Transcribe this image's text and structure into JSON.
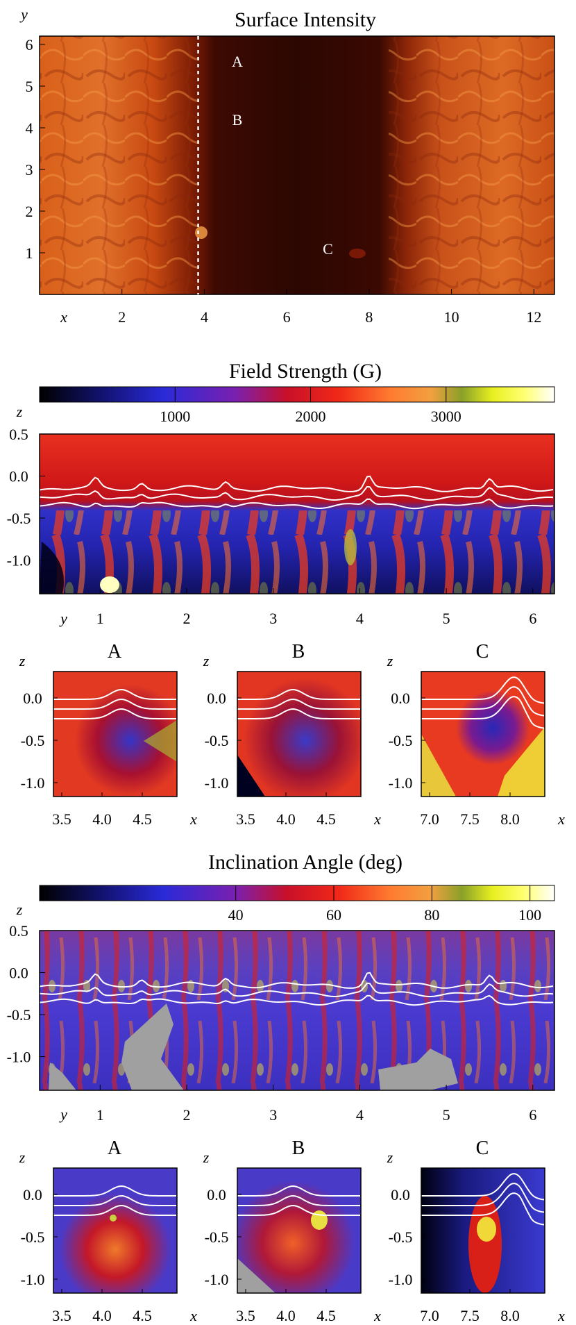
{
  "figure": {
    "panels": [
      {
        "id": "surface",
        "title": "Surface Intensity",
        "ylabel": "y",
        "xlabel": "x",
        "x_ticks": [
          "2",
          "4",
          "6",
          "8",
          "10",
          "12"
        ],
        "y_ticks": [
          "1",
          "2",
          "3",
          "4",
          "5",
          "6"
        ],
        "markers": [
          {
            "label": "A",
            "x": 4.8,
            "y": 5.6
          },
          {
            "label": "B",
            "x": 4.8,
            "y": 4.2
          },
          {
            "label": "C",
            "x": 7.0,
            "y": 1.1
          }
        ],
        "dashed_line_x": 3.85
      },
      {
        "id": "field",
        "title": "Field Strength (G)",
        "colorbar_ticks": [
          "1000",
          "2000",
          "3000"
        ],
        "zlabel": "z",
        "xlabel": "y",
        "x_ticks": [
          "1",
          "2",
          "3",
          "4",
          "5",
          "6"
        ],
        "z_ticks": [
          "0.5",
          "0.0",
          "-0.5",
          "-1.0"
        ],
        "insets": [
          {
            "label": "A",
            "x_ticks": [
              "3.5",
              "4.0",
              "4.5"
            ],
            "z_ticks": [
              "0.0",
              "-0.5",
              "-1.0"
            ],
            "xlabel": "x",
            "zlabel": "z"
          },
          {
            "label": "B",
            "x_ticks": [
              "3.5",
              "4.0",
              "4.5"
            ],
            "z_ticks": [
              "0.0",
              "-0.5",
              "-1.0"
            ],
            "xlabel": "x",
            "zlabel": "z"
          },
          {
            "label": "C",
            "x_ticks": [
              "7.0",
              "7.5",
              "8.0"
            ],
            "z_ticks": [
              "0.0",
              "-0.5",
              "-1.0"
            ],
            "xlabel": "x",
            "zlabel": "z"
          }
        ]
      },
      {
        "id": "incl",
        "title": "Inclination Angle (deg)",
        "colorbar_ticks": [
          "40",
          "60",
          "80",
          "100"
        ],
        "zlabel": "z",
        "xlabel": "y",
        "x_ticks": [
          "1",
          "2",
          "3",
          "4",
          "5",
          "6"
        ],
        "z_ticks": [
          "0.5",
          "0.0",
          "-0.5",
          "-1.0"
        ],
        "insets": [
          {
            "label": "A",
            "x_ticks": [
              "3.5",
              "4.0",
              "4.5"
            ],
            "z_ticks": [
              "0.0",
              "-0.5",
              "-1.0"
            ],
            "xlabel": "x",
            "zlabel": "z"
          },
          {
            "label": "B",
            "x_ticks": [
              "3.5",
              "4.0",
              "4.5"
            ],
            "z_ticks": [
              "0.0",
              "-0.5",
              "-1.0"
            ],
            "xlabel": "x",
            "zlabel": "z"
          },
          {
            "label": "C",
            "x_ticks": [
              "7.0",
              "7.5",
              "8.0"
            ],
            "z_ticks": [
              "0.0",
              "-0.5",
              "-1.0"
            ],
            "xlabel": "x",
            "zlabel": "z"
          }
        ]
      }
    ]
  },
  "chart_data": [
    {
      "type": "heatmap",
      "title": "Surface Intensity",
      "xlabel": "x",
      "ylabel": "y",
      "xlim": [
        0,
        12.5
      ],
      "ylim": [
        0,
        6.2
      ],
      "x_ticks": [
        2,
        4,
        6,
        8,
        10,
        12
      ],
      "y_ticks": [
        1,
        2,
        3,
        4,
        5,
        6
      ],
      "dark_region_x": [
        3.9,
        8.9
      ],
      "annotations": [
        {
          "label": "A",
          "x": 4.8,
          "y": 5.6
        },
        {
          "label": "B",
          "x": 4.8,
          "y": 4.2
        },
        {
          "label": "C",
          "x": 7.0,
          "y": 1.1
        }
      ],
      "dashed_line_x": 3.85
    },
    {
      "type": "heatmap",
      "title": "Field Strength (G)",
      "xlabel": "y",
      "ylabel": "z",
      "xlim": [
        0.3,
        6.25
      ],
      "ylim": [
        -1.4,
        0.5
      ],
      "x_ticks": [
        1,
        2,
        3,
        4,
        5,
        6
      ],
      "y_ticks": [
        0.5,
        0.0,
        -0.5,
        -1.0
      ],
      "colorbar_ticks": [
        1000,
        2000,
        3000
      ],
      "colorbar_range": [
        0,
        3800
      ],
      "contour_levels_z": [
        -0.15,
        -0.25,
        -0.35
      ]
    },
    {
      "type": "heatmap",
      "title": "Inclination Angle (deg)",
      "xlabel": "y",
      "ylabel": "z",
      "xlim": [
        0.3,
        6.25
      ],
      "ylim": [
        -1.4,
        0.5
      ],
      "x_ticks": [
        1,
        2,
        3,
        4,
        5,
        6
      ],
      "y_ticks": [
        0.5,
        0.0,
        -0.5,
        -1.0
      ],
      "colorbar_ticks": [
        40,
        60,
        80,
        100
      ],
      "colorbar_range": [
        0,
        105
      ],
      "contour_levels_z": [
        -0.15,
        -0.25,
        -0.35
      ]
    }
  ]
}
